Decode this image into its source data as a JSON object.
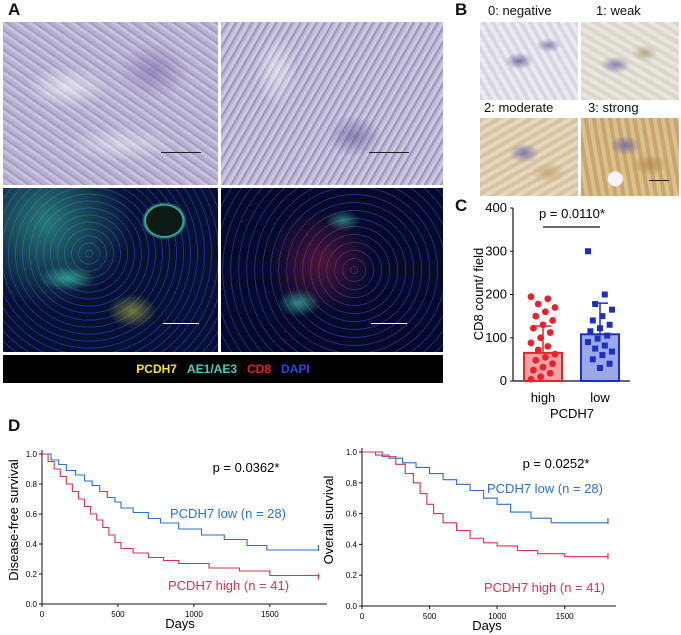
{
  "panels": {
    "A": "A",
    "B": "B",
    "C": "C",
    "D": "D"
  },
  "panel_a": {
    "legend": [
      {
        "text": "PCDH7",
        "color": "#f5e81c"
      },
      {
        "text": "AE1/AE3",
        "color": "#3fd3c0"
      },
      {
        "text": "CD8",
        "color": "#e8222a"
      },
      {
        "text": "DAPI",
        "color": "#2a46e6"
      }
    ]
  },
  "panel_b": {
    "scores": [
      "0: negative",
      "1: weak",
      "2: moderate",
      "3: strong"
    ]
  },
  "chart_data": [
    {
      "type": "bar",
      "categories": [
        "high",
        "low"
      ],
      "values": [
        65,
        108
      ],
      "error": [
        62,
        72
      ],
      "ylabel": "CD8 count/ field",
      "xlabel": "PCDH7",
      "ylim": [
        0,
        400
      ],
      "yticks": [
        "0",
        "100",
        "200",
        "300",
        "400"
      ],
      "annotation": "p = 0.0110*",
      "colors": {
        "high": "#e8222a",
        "low": "#1f2fbf"
      },
      "points": {
        "high": [
          195,
          190,
          178,
          170,
          160,
          150,
          140,
          130,
          122,
          112,
          100,
          88,
          80,
          72,
          62,
          55,
          48,
          40,
          32,
          25,
          18,
          10,
          4
        ],
        "low": [
          300,
          200,
          178,
          165,
          150,
          140,
          130,
          122,
          115,
          105,
          98,
          90,
          82,
          75,
          68,
          60,
          50,
          40,
          30
        ]
      }
    },
    {
      "type": "line",
      "title": "",
      "ylabel": "Disease-free survival",
      "xlabel": "Days",
      "xlim": [
        0,
        1850
      ],
      "ylim": [
        0,
        1.0
      ],
      "xticks": [
        "0",
        "500",
        "1000",
        "1500"
      ],
      "yticks": [
        "0.0",
        "0.2",
        "0.4",
        "0.6",
        "0.8",
        "1.0"
      ],
      "annotation": "p = 0.0362*",
      "series": [
        {
          "name": "PCDH7 low (n = 28)",
          "color": "#2a6fd6",
          "x": [
            0,
            60,
            110,
            160,
            220,
            280,
            330,
            380,
            430,
            480,
            520,
            600,
            700,
            780,
            900,
            1050,
            1200,
            1350,
            1480,
            1550,
            1820
          ],
          "y": [
            1.0,
            0.96,
            0.93,
            0.89,
            0.86,
            0.82,
            0.79,
            0.75,
            0.71,
            0.68,
            0.64,
            0.61,
            0.57,
            0.54,
            0.5,
            0.46,
            0.43,
            0.39,
            0.36,
            0.36,
            0.36
          ]
        },
        {
          "name": "PCDH7 high (n = 41)",
          "color": "#d8334a",
          "x": [
            0,
            40,
            80,
            120,
            160,
            200,
            240,
            280,
            320,
            360,
            400,
            440,
            480,
            520,
            600,
            700,
            800,
            900,
            1100,
            1300,
            1500,
            1820
          ],
          "y": [
            1.0,
            0.95,
            0.9,
            0.85,
            0.8,
            0.75,
            0.7,
            0.65,
            0.6,
            0.56,
            0.51,
            0.46,
            0.41,
            0.37,
            0.34,
            0.31,
            0.29,
            0.27,
            0.24,
            0.22,
            0.19,
            0.17
          ]
        }
      ]
    },
    {
      "type": "line",
      "title": "",
      "ylabel": "Overall survival",
      "xlabel": "Days",
      "xlim": [
        0,
        1850
      ],
      "ylim": [
        0,
        1.0
      ],
      "xticks": [
        "0",
        "500",
        "1000",
        "1500"
      ],
      "yticks": [
        "0.0",
        "0.2",
        "0.4",
        "0.6",
        "0.8",
        "1.0"
      ],
      "annotation": "p = 0.0252*",
      "series": [
        {
          "name": "PCDH7 low (n = 28)",
          "color": "#2a6fd6",
          "x": [
            0,
            100,
            200,
            300,
            400,
            500,
            600,
            700,
            800,
            900,
            1000,
            1100,
            1250,
            1400,
            1550,
            1820
          ],
          "y": [
            1.0,
            0.98,
            0.96,
            0.93,
            0.9,
            0.86,
            0.82,
            0.79,
            0.75,
            0.7,
            0.66,
            0.61,
            0.57,
            0.54,
            0.54,
            0.54
          ]
        },
        {
          "name": "PCDH7 high (n = 41)",
          "color": "#d8334a",
          "x": [
            0,
            150,
            250,
            320,
            380,
            430,
            480,
            530,
            600,
            700,
            800,
            900,
            1000,
            1150,
            1300,
            1500,
            1820
          ],
          "y": [
            1.0,
            0.97,
            0.92,
            0.86,
            0.8,
            0.73,
            0.66,
            0.6,
            0.54,
            0.49,
            0.44,
            0.41,
            0.39,
            0.36,
            0.34,
            0.32,
            0.31
          ]
        }
      ]
    }
  ]
}
